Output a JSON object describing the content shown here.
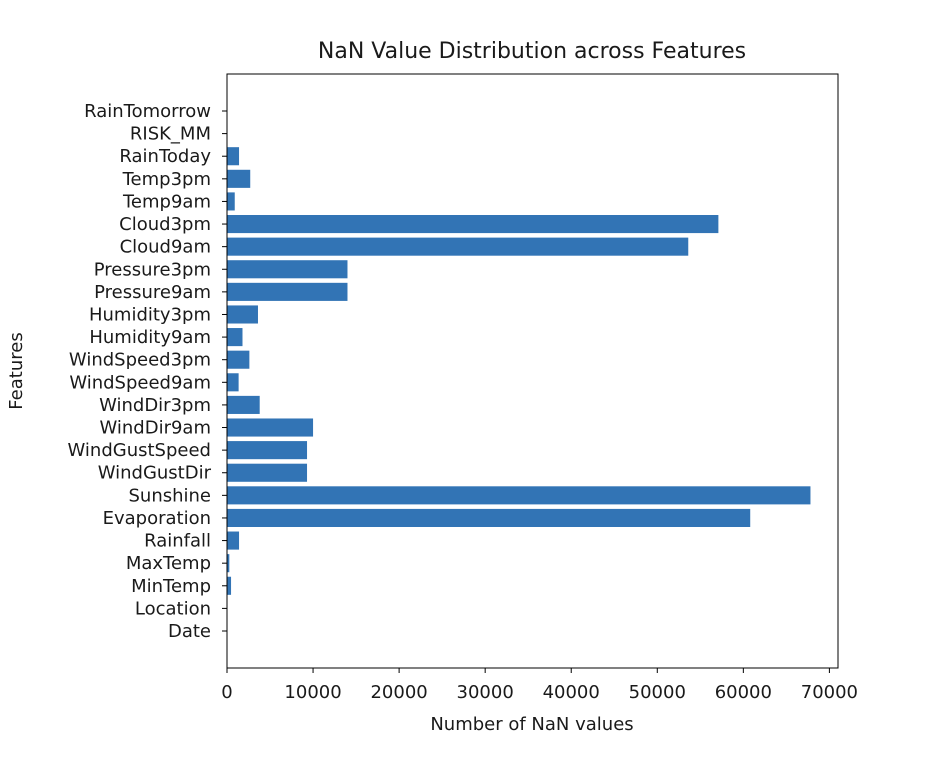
{
  "chart_data": {
    "type": "bar",
    "orientation": "horizontal",
    "title": "NaN Value Distribution across Features",
    "xlabel": "Number of NaN values",
    "ylabel": "Features",
    "xlim": [
      0,
      71000
    ],
    "x_ticks": [
      0,
      10000,
      20000,
      30000,
      40000,
      50000,
      60000,
      70000
    ],
    "grid": false,
    "bar_color": "#3274b5",
    "categories": [
      "Date",
      "Location",
      "MinTemp",
      "MaxTemp",
      "Rainfall",
      "Evaporation",
      "Sunshine",
      "WindGustDir",
      "WindGustSpeed",
      "WindDir9am",
      "WindDir3pm",
      "WindSpeed9am",
      "WindSpeed3pm",
      "Humidity9am",
      "Humidity3pm",
      "Pressure9am",
      "Pressure3pm",
      "Cloud9am",
      "Cloud3pm",
      "Temp9am",
      "Temp3pm",
      "RainToday",
      "RISK_MM",
      "RainTomorrow"
    ],
    "values": [
      0,
      0,
      470,
      270,
      1400,
      60800,
      67800,
      9300,
      9300,
      10000,
      3800,
      1350,
      2600,
      1800,
      3600,
      14000,
      14000,
      53600,
      57100,
      900,
      2700,
      1400,
      0,
      0
    ]
  }
}
